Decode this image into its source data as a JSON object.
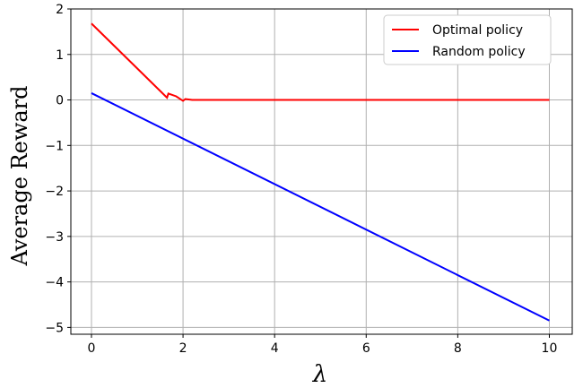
{
  "chart_data": {
    "type": "line",
    "xlabel": "λ",
    "ylabel": "Average Reward",
    "xlim": [
      -0.45,
      10.5
    ],
    "ylim": [
      -5.15,
      2.0
    ],
    "xticks": [
      0,
      2,
      4,
      6,
      8,
      10
    ],
    "yticks": [
      2,
      1,
      0,
      -1,
      -2,
      -3,
      -4,
      -5
    ],
    "xtick_labels": [
      "0",
      "2",
      "4",
      "6",
      "8",
      "10"
    ],
    "ytick_labels": [
      "2",
      "1",
      "0",
      "−1",
      "−2",
      "−3",
      "−4",
      "−5"
    ],
    "grid": true,
    "legend_position": "upper right",
    "series": [
      {
        "name": "Optimal policy",
        "color": "#ff0000",
        "x": [
          0,
          1.65,
          1.68,
          1.85,
          2.0,
          2.05,
          2.2,
          10
        ],
        "y": [
          1.68,
          0.05,
          0.14,
          0.08,
          -0.02,
          0.02,
          0.0,
          0.0
        ]
      },
      {
        "name": "Random policy",
        "color": "#0000ff",
        "x": [
          0,
          10
        ],
        "y": [
          0.15,
          -4.85
        ]
      }
    ]
  }
}
